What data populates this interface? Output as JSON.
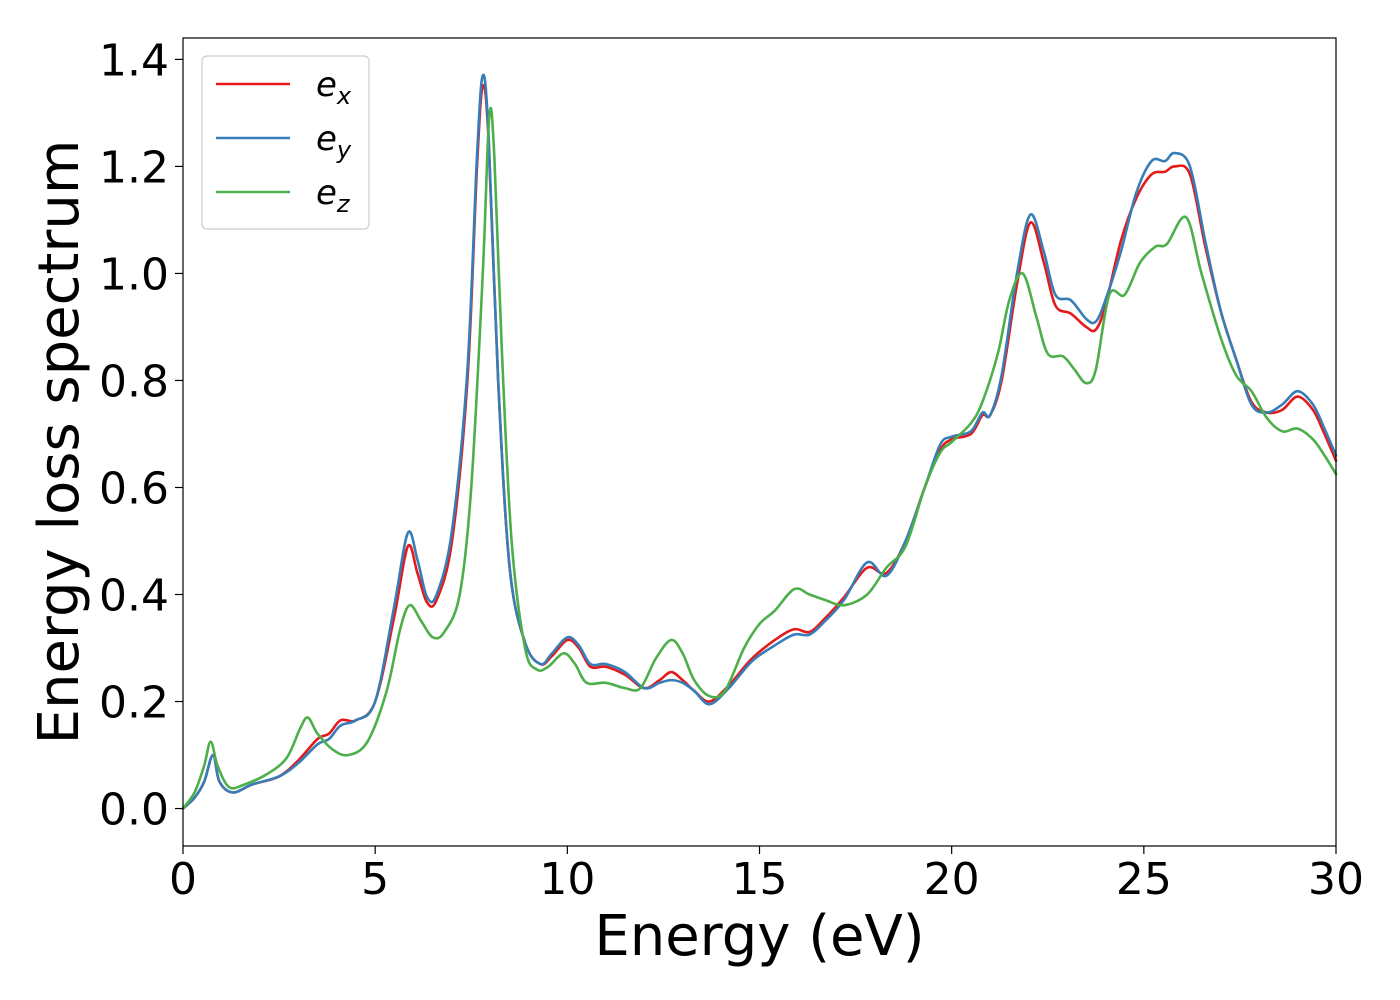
{
  "chart_data": {
    "type": "line",
    "title": "",
    "xlabel": "Energy (eV)",
    "ylabel": "Energy loss spectrum",
    "xlim": [
      0,
      30
    ],
    "ylim": [
      -0.07,
      1.44
    ],
    "xticks": [
      0,
      5,
      10,
      15,
      20,
      25,
      30
    ],
    "yticks": [
      0.0,
      0.2,
      0.4,
      0.6,
      0.8,
      1.0,
      1.2,
      1.4
    ],
    "xtick_labels": [
      "0",
      "5",
      "10",
      "15",
      "20",
      "25",
      "30"
    ],
    "ytick_labels": [
      "0.0",
      "0.2",
      "0.4",
      "0.6",
      "0.8",
      "1.0",
      "1.2",
      "1.4"
    ],
    "grid": false,
    "legend_position": "top-left",
    "series": [
      {
        "name": "e_x",
        "legend_base": "e",
        "legend_sub": "x",
        "color": "#e41a1c",
        "points": [
          [
            0,
            0.0
          ],
          [
            0.3,
            0.02
          ],
          [
            0.55,
            0.05
          ],
          [
            0.78,
            0.1
          ],
          [
            0.95,
            0.05
          ],
          [
            1.3,
            0.03
          ],
          [
            1.8,
            0.045
          ],
          [
            2.5,
            0.06
          ],
          [
            3.0,
            0.09
          ],
          [
            3.5,
            0.13
          ],
          [
            3.8,
            0.14
          ],
          [
            4.1,
            0.165
          ],
          [
            4.5,
            0.165
          ],
          [
            5.0,
            0.2
          ],
          [
            5.5,
            0.36
          ],
          [
            5.85,
            0.49
          ],
          [
            6.1,
            0.44
          ],
          [
            6.35,
            0.385
          ],
          [
            6.6,
            0.39
          ],
          [
            7.0,
            0.5
          ],
          [
            7.4,
            0.8
          ],
          [
            7.65,
            1.2
          ],
          [
            7.8,
            1.35
          ],
          [
            7.95,
            1.25
          ],
          [
            8.2,
            0.8
          ],
          [
            8.5,
            0.45
          ],
          [
            8.9,
            0.31
          ],
          [
            9.3,
            0.27
          ],
          [
            9.6,
            0.285
          ],
          [
            10.0,
            0.315
          ],
          [
            10.3,
            0.3
          ],
          [
            10.6,
            0.265
          ],
          [
            11.0,
            0.265
          ],
          [
            11.5,
            0.25
          ],
          [
            12.0,
            0.225
          ],
          [
            12.4,
            0.24
          ],
          [
            12.7,
            0.255
          ],
          [
            13.0,
            0.24
          ],
          [
            13.3,
            0.22
          ],
          [
            13.7,
            0.2
          ],
          [
            14.2,
            0.23
          ],
          [
            14.8,
            0.28
          ],
          [
            15.4,
            0.315
          ],
          [
            15.9,
            0.335
          ],
          [
            16.3,
            0.33
          ],
          [
            16.7,
            0.355
          ],
          [
            17.2,
            0.395
          ],
          [
            17.8,
            0.45
          ],
          [
            18.3,
            0.44
          ],
          [
            18.8,
            0.5
          ],
          [
            19.3,
            0.6
          ],
          [
            19.7,
            0.67
          ],
          [
            20.0,
            0.69
          ],
          [
            20.5,
            0.7
          ],
          [
            20.8,
            0.735
          ],
          [
            21.0,
            0.735
          ],
          [
            21.3,
            0.8
          ],
          [
            21.7,
            0.98
          ],
          [
            22.05,
            1.095
          ],
          [
            22.4,
            1.02
          ],
          [
            22.7,
            0.94
          ],
          [
            23.1,
            0.925
          ],
          [
            23.5,
            0.9
          ],
          [
            23.75,
            0.895
          ],
          [
            24.0,
            0.94
          ],
          [
            24.4,
            1.06
          ],
          [
            24.8,
            1.14
          ],
          [
            25.2,
            1.185
          ],
          [
            25.55,
            1.19
          ],
          [
            25.8,
            1.2
          ],
          [
            26.2,
            1.185
          ],
          [
            26.6,
            1.05
          ],
          [
            27.0,
            0.93
          ],
          [
            27.4,
            0.84
          ],
          [
            27.8,
            0.76
          ],
          [
            28.2,
            0.74
          ],
          [
            28.6,
            0.745
          ],
          [
            29.0,
            0.77
          ],
          [
            29.4,
            0.745
          ],
          [
            29.7,
            0.7
          ],
          [
            30.0,
            0.65
          ]
        ]
      },
      {
        "name": "e_y",
        "legend_base": "e",
        "legend_sub": "y",
        "color": "#377eb8",
        "points": [
          [
            0,
            0.0
          ],
          [
            0.3,
            0.02
          ],
          [
            0.55,
            0.05
          ],
          [
            0.78,
            0.1
          ],
          [
            0.95,
            0.05
          ],
          [
            1.3,
            0.03
          ],
          [
            1.8,
            0.045
          ],
          [
            2.5,
            0.06
          ],
          [
            3.0,
            0.085
          ],
          [
            3.5,
            0.12
          ],
          [
            3.8,
            0.13
          ],
          [
            4.1,
            0.155
          ],
          [
            4.5,
            0.165
          ],
          [
            5.0,
            0.2
          ],
          [
            5.5,
            0.38
          ],
          [
            5.85,
            0.515
          ],
          [
            6.1,
            0.465
          ],
          [
            6.35,
            0.395
          ],
          [
            6.6,
            0.4
          ],
          [
            7.0,
            0.52
          ],
          [
            7.4,
            0.82
          ],
          [
            7.65,
            1.22
          ],
          [
            7.8,
            1.37
          ],
          [
            7.95,
            1.26
          ],
          [
            8.2,
            0.8
          ],
          [
            8.5,
            0.45
          ],
          [
            8.9,
            0.31
          ],
          [
            9.3,
            0.27
          ],
          [
            9.6,
            0.29
          ],
          [
            10.0,
            0.32
          ],
          [
            10.3,
            0.305
          ],
          [
            10.6,
            0.27
          ],
          [
            11.0,
            0.27
          ],
          [
            11.5,
            0.255
          ],
          [
            12.0,
            0.225
          ],
          [
            12.4,
            0.235
          ],
          [
            12.7,
            0.24
          ],
          [
            13.0,
            0.235
          ],
          [
            13.3,
            0.22
          ],
          [
            13.7,
            0.195
          ],
          [
            14.2,
            0.225
          ],
          [
            14.8,
            0.275
          ],
          [
            15.4,
            0.305
          ],
          [
            15.9,
            0.325
          ],
          [
            16.3,
            0.325
          ],
          [
            16.7,
            0.35
          ],
          [
            17.2,
            0.39
          ],
          [
            17.8,
            0.46
          ],
          [
            18.3,
            0.435
          ],
          [
            18.8,
            0.5
          ],
          [
            19.3,
            0.6
          ],
          [
            19.7,
            0.68
          ],
          [
            20.0,
            0.695
          ],
          [
            20.5,
            0.705
          ],
          [
            20.8,
            0.74
          ],
          [
            21.0,
            0.735
          ],
          [
            21.3,
            0.81
          ],
          [
            21.7,
            1.0
          ],
          [
            22.05,
            1.11
          ],
          [
            22.4,
            1.04
          ],
          [
            22.7,
            0.96
          ],
          [
            23.1,
            0.95
          ],
          [
            23.5,
            0.915
          ],
          [
            23.75,
            0.91
          ],
          [
            24.0,
            0.95
          ],
          [
            24.4,
            1.04
          ],
          [
            24.8,
            1.15
          ],
          [
            25.2,
            1.21
          ],
          [
            25.55,
            1.21
          ],
          [
            25.8,
            1.225
          ],
          [
            26.2,
            1.2
          ],
          [
            26.6,
            1.06
          ],
          [
            27.0,
            0.93
          ],
          [
            27.4,
            0.84
          ],
          [
            27.8,
            0.755
          ],
          [
            28.2,
            0.74
          ],
          [
            28.6,
            0.755
          ],
          [
            29.0,
            0.78
          ],
          [
            29.4,
            0.755
          ],
          [
            29.7,
            0.71
          ],
          [
            30.0,
            0.66
          ]
        ]
      },
      {
        "name": "e_z",
        "legend_base": "e",
        "legend_sub": "z",
        "color": "#4daf4a",
        "points": [
          [
            0,
            0.0
          ],
          [
            0.3,
            0.03
          ],
          [
            0.55,
            0.08
          ],
          [
            0.72,
            0.125
          ],
          [
            0.9,
            0.08
          ],
          [
            1.2,
            0.04
          ],
          [
            1.6,
            0.045
          ],
          [
            2.2,
            0.065
          ],
          [
            2.7,
            0.095
          ],
          [
            3.05,
            0.15
          ],
          [
            3.25,
            0.17
          ],
          [
            3.5,
            0.14
          ],
          [
            3.9,
            0.11
          ],
          [
            4.3,
            0.1
          ],
          [
            4.8,
            0.125
          ],
          [
            5.3,
            0.22
          ],
          [
            5.65,
            0.335
          ],
          [
            5.9,
            0.38
          ],
          [
            6.2,
            0.35
          ],
          [
            6.5,
            0.32
          ],
          [
            6.8,
            0.33
          ],
          [
            7.2,
            0.4
          ],
          [
            7.5,
            0.6
          ],
          [
            7.8,
            1.0
          ],
          [
            7.97,
            1.295
          ],
          [
            8.1,
            1.22
          ],
          [
            8.3,
            0.85
          ],
          [
            8.55,
            0.5
          ],
          [
            8.9,
            0.3
          ],
          [
            9.2,
            0.26
          ],
          [
            9.5,
            0.265
          ],
          [
            9.9,
            0.29
          ],
          [
            10.2,
            0.27
          ],
          [
            10.5,
            0.235
          ],
          [
            11.0,
            0.235
          ],
          [
            11.5,
            0.225
          ],
          [
            11.9,
            0.225
          ],
          [
            12.3,
            0.28
          ],
          [
            12.7,
            0.315
          ],
          [
            13.0,
            0.29
          ],
          [
            13.3,
            0.24
          ],
          [
            13.7,
            0.21
          ],
          [
            14.1,
            0.22
          ],
          [
            14.6,
            0.3
          ],
          [
            15.0,
            0.345
          ],
          [
            15.4,
            0.37
          ],
          [
            15.9,
            0.41
          ],
          [
            16.3,
            0.4
          ],
          [
            16.7,
            0.39
          ],
          [
            17.2,
            0.38
          ],
          [
            17.8,
            0.4
          ],
          [
            18.3,
            0.45
          ],
          [
            18.8,
            0.49
          ],
          [
            19.3,
            0.6
          ],
          [
            19.7,
            0.665
          ],
          [
            20.0,
            0.685
          ],
          [
            20.5,
            0.72
          ],
          [
            20.8,
            0.76
          ],
          [
            21.2,
            0.85
          ],
          [
            21.5,
            0.95
          ],
          [
            21.85,
            1.0
          ],
          [
            22.2,
            0.92
          ],
          [
            22.5,
            0.85
          ],
          [
            22.9,
            0.845
          ],
          [
            23.2,
            0.82
          ],
          [
            23.5,
            0.795
          ],
          [
            23.75,
            0.82
          ],
          [
            24.1,
            0.96
          ],
          [
            24.5,
            0.96
          ],
          [
            24.9,
            1.02
          ],
          [
            25.3,
            1.05
          ],
          [
            25.6,
            1.055
          ],
          [
            26.1,
            1.105
          ],
          [
            26.5,
            1.0
          ],
          [
            27.0,
            0.88
          ],
          [
            27.4,
            0.81
          ],
          [
            27.8,
            0.78
          ],
          [
            28.2,
            0.73
          ],
          [
            28.6,
            0.705
          ],
          [
            29.0,
            0.71
          ],
          [
            29.4,
            0.69
          ],
          [
            29.7,
            0.66
          ],
          [
            30.0,
            0.625
          ]
        ]
      }
    ]
  }
}
